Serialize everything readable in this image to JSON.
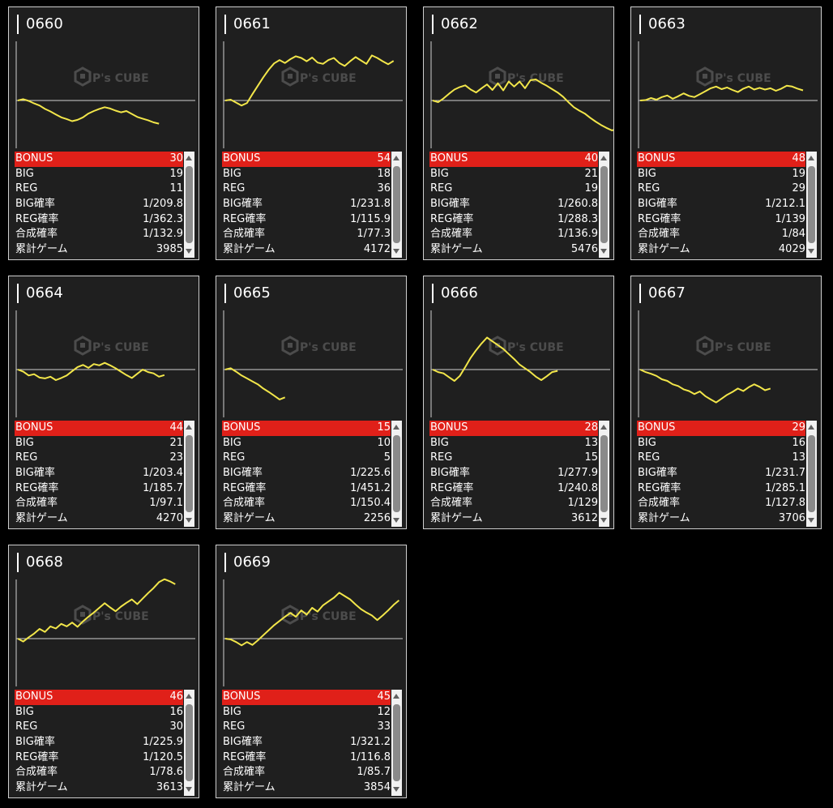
{
  "watermark": {
    "brand": "P's CUBE"
  },
  "labels": {
    "bonus": "BONUS",
    "big": "BIG",
    "reg": "REG",
    "big_rate": "BIG確率",
    "reg_rate": "REG確率",
    "combined_rate": "合成確率",
    "total_games": "累計ゲーム"
  },
  "colors": {
    "card_bg": "#1f1f1f",
    "bonus_row": "#e02019",
    "graph_line": "#f2e64a"
  },
  "machines": [
    {
      "id": "0660",
      "bonus": "30",
      "big": "19",
      "reg": "11",
      "big_rate": "1/209.8",
      "reg_rate": "1/362.3",
      "combined_rate": "1/132.9",
      "total_games": "3985",
      "trend": [
        0,
        0.3,
        -0.1,
        -0.7,
        -1.2,
        -2.0,
        -2.6,
        -3.3,
        -4.0,
        -4.4,
        -4.9,
        -4.6,
        -4.0,
        -3.1,
        -2.5,
        -2.0,
        -1.6,
        -1.9,
        -2.4,
        -2.8,
        -2.5,
        -3.2,
        -3.9,
        -4.3,
        -4.7,
        -5.2,
        -5.5
      ]
    },
    {
      "id": "0661",
      "bonus": "54",
      "big": "18",
      "reg": "36",
      "big_rate": "1/231.8",
      "reg_rate": "1/115.9",
      "combined_rate": "1/77.3",
      "total_games": "4172",
      "trend": [
        0,
        0.2,
        -0.5,
        -1.2,
        -0.6,
        1.5,
        3.5,
        5.5,
        7.3,
        8.8,
        9.6,
        8.9,
        9.8,
        10.5,
        10.1,
        9.3,
        10.2,
        9.0,
        8.7,
        9.6,
        10.1,
        8.9,
        8.2,
        9.3,
        10.3,
        9.5,
        8.7,
        10.7,
        10.1,
        9.3,
        8.6,
        9.4
      ]
    },
    {
      "id": "0662",
      "bonus": "40",
      "big": "21",
      "reg": "19",
      "big_rate": "1/260.8",
      "reg_rate": "1/288.3",
      "combined_rate": "1/136.9",
      "total_games": "5476",
      "trend": [
        0,
        -0.4,
        0.5,
        1.6,
        2.6,
        3.2,
        3.6,
        2.6,
        1.9,
        2.9,
        3.8,
        2.5,
        4.1,
        2.4,
        4.5,
        3.3,
        4.5,
        2.9,
        4.8,
        5.0,
        4.2,
        3.5,
        2.7,
        1.9,
        0.9,
        -0.4,
        -1.6,
        -2.4,
        -3.1,
        -4.1,
        -5.0,
        -5.8,
        -6.5,
        -7.1,
        -6.8
      ]
    },
    {
      "id": "0663",
      "bonus": "48",
      "big": "19",
      "reg": "29",
      "big_rate": "1/212.1",
      "reg_rate": "1/139",
      "combined_rate": "1/84",
      "total_games": "4029",
      "trend": [
        0,
        0.1,
        0.6,
        0.2,
        0.8,
        1.2,
        0.4,
        1.0,
        1.7,
        1.1,
        0.8,
        1.5,
        2.2,
        2.9,
        3.3,
        2.7,
        3.1,
        2.5,
        2.0,
        2.8,
        3.3,
        2.6,
        3.0,
        2.6,
        2.9,
        2.3,
        2.8,
        3.5,
        3.3,
        2.8,
        2.4
      ]
    },
    {
      "id": "0664",
      "bonus": "44",
      "big": "21",
      "reg": "23",
      "big_rate": "1/203.4",
      "reg_rate": "1/185.7",
      "combined_rate": "1/97.1",
      "total_games": "4270",
      "trend": [
        0,
        -0.5,
        -1.4,
        -1.1,
        -1.9,
        -2.1,
        -1.7,
        -2.5,
        -2.0,
        -1.4,
        -0.4,
        0.6,
        1.1,
        0.4,
        1.3,
        1.0,
        1.6,
        1.0,
        0.3,
        -0.5,
        -1.3,
        -2.0,
        -1.0,
        0.0,
        -0.6,
        -0.9,
        -1.7,
        -1.3
      ]
    },
    {
      "id": "0665",
      "bonus": "15",
      "big": "10",
      "reg": "5",
      "big_rate": "1/225.6",
      "reg_rate": "1/451.2",
      "combined_rate": "1/150.4",
      "total_games": "2256",
      "trend": [
        0,
        0.3,
        -0.5,
        -1.4,
        -2.1,
        -2.8,
        -3.5,
        -4.5,
        -5.3,
        -6.2,
        -7.1,
        -6.6
      ]
    },
    {
      "id": "0666",
      "bonus": "28",
      "big": "13",
      "reg": "15",
      "big_rate": "1/277.9",
      "reg_rate": "1/240.8",
      "combined_rate": "1/129",
      "total_games": "3612",
      "trend": [
        0,
        -0.6,
        -0.9,
        -1.8,
        -2.7,
        -1.5,
        0.6,
        2.8,
        4.6,
        6.2,
        7.6,
        6.7,
        5.8,
        4.9,
        3.7,
        2.5,
        1.2,
        0.3,
        -0.6,
        -1.7,
        -2.5,
        -1.6,
        -0.6,
        -0.3
      ]
    },
    {
      "id": "0667",
      "bonus": "29",
      "big": "16",
      "reg": "13",
      "big_rate": "1/231.7",
      "reg_rate": "1/285.1",
      "combined_rate": "1/127.8",
      "total_games": "3706",
      "trend": [
        0,
        -0.6,
        -1.0,
        -1.5,
        -2.3,
        -2.7,
        -3.5,
        -3.9,
        -4.7,
        -5.1,
        -5.8,
        -5.2,
        -6.3,
        -7.1,
        -7.8,
        -6.9,
        -6.0,
        -5.3,
        -4.5,
        -5.1,
        -4.2,
        -3.5,
        -4.1,
        -4.9,
        -4.5
      ]
    },
    {
      "id": "0668",
      "bonus": "46",
      "big": "16",
      "reg": "30",
      "big_rate": "1/225.9",
      "reg_rate": "1/120.5",
      "combined_rate": "1/78.6",
      "total_games": "3613",
      "trend": [
        0,
        -0.7,
        0.3,
        1.2,
        2.3,
        1.6,
        2.9,
        2.4,
        3.5,
        2.9,
        3.8,
        2.8,
        4.1,
        5.2,
        6.2,
        7.3,
        8.4,
        7.4,
        6.5,
        7.6,
        8.5,
        9.3,
        8.2,
        9.5,
        10.8,
        12.0,
        13.4,
        14.1,
        13.6,
        12.9
      ]
    },
    {
      "id": "0669",
      "bonus": "45",
      "big": "12",
      "reg": "33",
      "big_rate": "1/321.2",
      "reg_rate": "1/116.8",
      "combined_rate": "1/85.7",
      "total_games": "3854",
      "trend": [
        0,
        -0.2,
        -0.8,
        -1.6,
        -0.8,
        -1.5,
        -0.4,
        0.8,
        2.0,
        3.2,
        4.2,
        5.2,
        6.1,
        5.2,
        6.7,
        5.7,
        7.3,
        6.4,
        7.9,
        8.8,
        9.7,
        10.9,
        10.1,
        9.3,
        8.1,
        7.0,
        6.2,
        5.5,
        4.4,
        5.5,
        6.7,
        8.0,
        9.1
      ]
    }
  ]
}
